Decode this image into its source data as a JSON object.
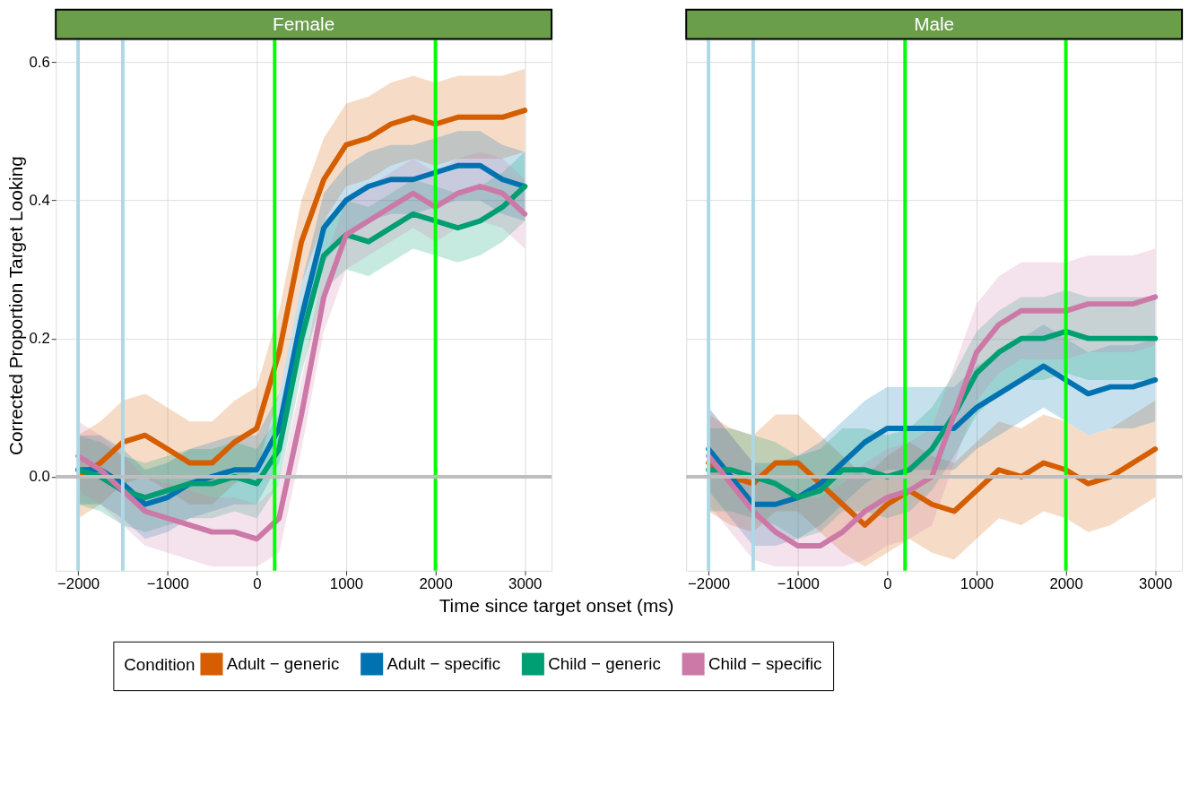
{
  "chart_data": [
    {
      "type": "line",
      "title": "Female",
      "xlabel": "Time since target onset (ms)",
      "ylabel": "Corrected Proportion Target Looking",
      "legend_title": "Condition",
      "legend": "bottom",
      "grid": true,
      "line_style": "solid",
      "x": [
        -2000,
        -1750,
        -1500,
        -1250,
        -1000,
        -750,
        -500,
        -250,
        0,
        250,
        500,
        750,
        1000,
        1250,
        1500,
        1750,
        2000,
        2250,
        2500,
        2750,
        3000
      ],
      "xlim": [
        -2250,
        3300
      ],
      "xticks": [
        -2000,
        -1000,
        0,
        1000,
        2000,
        3000
      ],
      "ylim": [
        -0.136,
        0.632
      ],
      "yticks": [
        {
          "value": 0,
          "label": "0.0"
        },
        0.2,
        0.4,
        0.6
      ],
      "ref_lines": [
        {
          "axis": "x",
          "value": -2000,
          "color": "#add8e6"
        },
        {
          "axis": "x",
          "value": -1500,
          "color": "#add8e6"
        },
        {
          "axis": "x",
          "value": 200,
          "color": "#00ff00"
        },
        {
          "axis": "x",
          "value": 2000,
          "color": "#00ff00"
        },
        {
          "axis": "y",
          "value": 0,
          "color": "#bebebe"
        }
      ],
      "series": [
        {
          "name": "Adult − generic",
          "color": "#d55e00",
          "values": [
            0.0,
            0.02,
            0.05,
            0.06,
            0.04,
            0.02,
            0.02,
            0.05,
            0.07,
            0.18,
            0.34,
            0.43,
            0.48,
            0.49,
            0.51,
            0.52,
            0.51,
            0.52,
            0.52,
            0.52,
            0.53
          ],
          "upper": [
            0.06,
            0.08,
            0.11,
            0.12,
            0.1,
            0.08,
            0.08,
            0.11,
            0.13,
            0.24,
            0.4,
            0.49,
            0.54,
            0.55,
            0.57,
            0.58,
            0.57,
            0.58,
            0.58,
            0.58,
            0.59
          ],
          "lower": [
            -0.06,
            -0.04,
            -0.01,
            0.0,
            -0.02,
            -0.04,
            -0.04,
            -0.01,
            0.01,
            0.12,
            0.28,
            0.37,
            0.42,
            0.43,
            0.45,
            0.46,
            0.45,
            0.46,
            0.46,
            0.46,
            0.47
          ]
        },
        {
          "name": "Adult − specific",
          "color": "#0072b2",
          "values": [
            0.01,
            0.01,
            -0.01,
            -0.04,
            -0.03,
            -0.01,
            0.0,
            0.01,
            0.01,
            0.07,
            0.23,
            0.36,
            0.4,
            0.42,
            0.43,
            0.43,
            0.44,
            0.45,
            0.45,
            0.43,
            0.42
          ],
          "upper": [
            0.06,
            0.06,
            0.04,
            0.01,
            0.02,
            0.04,
            0.05,
            0.06,
            0.06,
            0.12,
            0.28,
            0.41,
            0.45,
            0.47,
            0.48,
            0.48,
            0.49,
            0.5,
            0.5,
            0.48,
            0.47
          ],
          "lower": [
            -0.04,
            -0.04,
            -0.06,
            -0.09,
            -0.08,
            -0.06,
            -0.05,
            -0.04,
            -0.04,
            0.02,
            0.18,
            0.31,
            0.35,
            0.37,
            0.38,
            0.38,
            0.39,
            0.4,
            0.4,
            0.38,
            0.37
          ]
        },
        {
          "name": "Child − generic",
          "color": "#009e73",
          "values": [
            0.01,
            0.0,
            -0.02,
            -0.03,
            -0.02,
            -0.01,
            -0.01,
            0.0,
            -0.01,
            0.04,
            0.2,
            0.32,
            0.35,
            0.34,
            0.36,
            0.38,
            0.37,
            0.36,
            0.37,
            0.39,
            0.42
          ],
          "upper": [
            0.06,
            0.05,
            0.03,
            0.02,
            0.03,
            0.04,
            0.04,
            0.05,
            0.04,
            0.09,
            0.25,
            0.37,
            0.4,
            0.39,
            0.41,
            0.43,
            0.42,
            0.41,
            0.42,
            0.44,
            0.47
          ],
          "lower": [
            -0.04,
            -0.05,
            -0.07,
            -0.08,
            -0.07,
            -0.06,
            -0.06,
            -0.05,
            -0.06,
            -0.01,
            0.15,
            0.27,
            0.3,
            0.29,
            0.31,
            0.33,
            0.32,
            0.31,
            0.32,
            0.34,
            0.37
          ]
        },
        {
          "name": "Child − specific",
          "color": "#cc79a7",
          "values": [
            0.03,
            0.01,
            -0.02,
            -0.05,
            -0.06,
            -0.07,
            -0.08,
            -0.08,
            -0.09,
            -0.06,
            0.09,
            0.26,
            0.35,
            0.37,
            0.39,
            0.41,
            0.39,
            0.41,
            0.42,
            0.41,
            0.38
          ],
          "upper": [
            0.08,
            0.06,
            0.03,
            0.0,
            -0.01,
            -0.02,
            -0.03,
            -0.03,
            -0.04,
            -0.01,
            0.14,
            0.31,
            0.4,
            0.42,
            0.44,
            0.46,
            0.44,
            0.46,
            0.47,
            0.46,
            0.43
          ],
          "lower": [
            -0.02,
            -0.04,
            -0.07,
            -0.1,
            -0.11,
            -0.12,
            -0.13,
            -0.13,
            -0.13,
            -0.11,
            0.04,
            0.21,
            0.3,
            0.32,
            0.34,
            0.36,
            0.34,
            0.36,
            0.37,
            0.36,
            0.33
          ]
        }
      ]
    },
    {
      "type": "line",
      "title": "Male",
      "tick_labels": "x",
      "grid": true,
      "line_style": "solid",
      "x": [
        -2000,
        -1750,
        -1500,
        -1250,
        -1000,
        -750,
        -500,
        -250,
        0,
        250,
        500,
        750,
        1000,
        1250,
        1500,
        1750,
        2000,
        2250,
        2500,
        2750,
        3000
      ],
      "xlim": [
        -2250,
        3300
      ],
      "xticks": [
        -2000,
        -1000,
        0,
        1000,
        2000,
        3000
      ],
      "ylim": [
        -0.136,
        0.632
      ],
      "yticks": [
        0,
        0.2,
        0.4,
        0.6
      ],
      "ref_lines": [
        {
          "axis": "x",
          "value": -2000,
          "color": "#add8e6"
        },
        {
          "axis": "x",
          "value": -1500,
          "color": "#add8e6"
        },
        {
          "axis": "x",
          "value": 200,
          "color": "#00ff00"
        },
        {
          "axis": "x",
          "value": 2000,
          "color": "#00ff00"
        },
        {
          "axis": "y",
          "value": 0,
          "color": "#bebebe"
        }
      ],
      "series": [
        {
          "name": "Adult − generic",
          "color": "#d55e00",
          "values": [
            0.02,
            0.0,
            -0.01,
            0.02,
            0.02,
            -0.01,
            -0.04,
            -0.07,
            -0.04,
            -0.02,
            -0.04,
            -0.05,
            -0.02,
            0.01,
            0.0,
            0.02,
            0.01,
            -0.01,
            0.0,
            0.02,
            0.04
          ],
          "upper": [
            0.09,
            0.07,
            0.06,
            0.09,
            0.09,
            0.06,
            0.03,
            0.0,
            0.03,
            0.05,
            0.03,
            0.02,
            0.05,
            0.08,
            0.07,
            0.09,
            0.08,
            0.06,
            0.07,
            0.09,
            0.11
          ],
          "lower": [
            -0.05,
            -0.07,
            -0.08,
            -0.05,
            -0.05,
            -0.08,
            -0.11,
            -0.13,
            -0.11,
            -0.09,
            -0.11,
            -0.12,
            -0.09,
            -0.06,
            -0.07,
            -0.05,
            -0.06,
            -0.08,
            -0.07,
            -0.05,
            -0.03
          ]
        },
        {
          "name": "Adult − specific",
          "color": "#0072b2",
          "values": [
            0.04,
            0.0,
            -0.04,
            -0.04,
            -0.03,
            -0.01,
            0.02,
            0.05,
            0.07,
            0.07,
            0.07,
            0.07,
            0.1,
            0.12,
            0.14,
            0.16,
            0.14,
            0.12,
            0.13,
            0.13,
            0.14
          ],
          "upper": [
            0.1,
            0.06,
            0.02,
            0.02,
            0.03,
            0.05,
            0.08,
            0.11,
            0.13,
            0.13,
            0.13,
            0.13,
            0.16,
            0.18,
            0.2,
            0.22,
            0.2,
            0.18,
            0.19,
            0.19,
            0.2
          ],
          "lower": [
            -0.02,
            -0.06,
            -0.1,
            -0.1,
            -0.09,
            -0.07,
            -0.04,
            -0.01,
            0.01,
            0.01,
            0.01,
            0.01,
            0.04,
            0.06,
            0.08,
            0.1,
            0.08,
            0.06,
            0.07,
            0.07,
            0.08
          ]
        },
        {
          "name": "Child − generic",
          "color": "#009e73",
          "values": [
            0.01,
            0.01,
            0.0,
            -0.01,
            -0.03,
            -0.02,
            0.01,
            0.01,
            0.0,
            0.01,
            0.04,
            0.09,
            0.15,
            0.18,
            0.2,
            0.2,
            0.21,
            0.2,
            0.2,
            0.2,
            0.2
          ],
          "upper": [
            0.07,
            0.07,
            0.06,
            0.05,
            0.03,
            0.04,
            0.07,
            0.07,
            0.06,
            0.07,
            0.1,
            0.15,
            0.21,
            0.24,
            0.26,
            0.26,
            0.27,
            0.26,
            0.26,
            0.26,
            0.26
          ],
          "lower": [
            -0.05,
            -0.05,
            -0.06,
            -0.07,
            -0.09,
            -0.08,
            -0.05,
            -0.05,
            -0.06,
            -0.05,
            -0.02,
            0.03,
            0.09,
            0.12,
            0.14,
            0.14,
            0.15,
            0.14,
            0.14,
            0.14,
            0.14
          ]
        },
        {
          "name": "Child − specific",
          "color": "#cc79a7",
          "values": [
            0.03,
            -0.01,
            -0.05,
            -0.08,
            -0.1,
            -0.1,
            -0.08,
            -0.05,
            -0.03,
            -0.02,
            0.0,
            0.09,
            0.18,
            0.22,
            0.24,
            0.24,
            0.24,
            0.25,
            0.25,
            0.25,
            0.26
          ],
          "upper": [
            0.1,
            0.06,
            0.02,
            -0.01,
            -0.03,
            -0.03,
            -0.01,
            0.02,
            0.04,
            0.05,
            0.07,
            0.16,
            0.25,
            0.29,
            0.31,
            0.31,
            0.31,
            0.32,
            0.32,
            0.32,
            0.33
          ],
          "lower": [
            -0.04,
            -0.08,
            -0.12,
            -0.13,
            -0.13,
            -0.13,
            -0.13,
            -0.12,
            -0.1,
            -0.09,
            -0.07,
            0.02,
            0.11,
            0.15,
            0.17,
            0.17,
            0.17,
            0.18,
            0.18,
            0.18,
            0.19
          ]
        }
      ]
    }
  ]
}
